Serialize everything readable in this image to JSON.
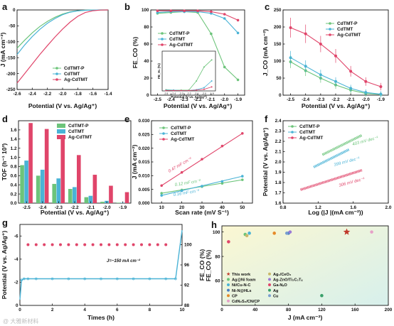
{
  "colors": {
    "cdtmt_p": "#6cc47a",
    "cdtmt": "#4ab3d6",
    "ag_cdtmt": "#e0456a"
  },
  "watermark": "@ 大雅新材料",
  "chart_data": [
    {
      "panel": "a",
      "type": "line",
      "xlabel": "Potential (V vs. Ag/Ag⁺)",
      "ylabel": "J (mA cm⁻²)",
      "xlim": [
        -2.6,
        -1.4
      ],
      "ylim": [
        -250,
        0
      ],
      "xticks": [
        "-2.6",
        "-2.4",
        "-2.2",
        "-2.0",
        "-1.8",
        "-1.6",
        "-1.4"
      ],
      "yticks": [
        "0",
        "-50",
        "-100",
        "-150",
        "-200",
        "-250"
      ],
      "legend": [
        "CdTMT-P",
        "CdTMT",
        "Ag-CdTMT"
      ],
      "series": [
        {
          "name": "CdTMT-P",
          "x": [
            -2.6,
            -2.5,
            -2.4,
            -2.3,
            -2.2,
            -2.1,
            -2.0,
            -1.9,
            -1.8,
            -1.7,
            -1.6,
            -1.5,
            -1.4
          ],
          "y": [
            -120,
            -95,
            -72,
            -52,
            -36,
            -23,
            -13,
            -6,
            -2.5,
            -1,
            -0.4,
            -0.1,
            0
          ]
        },
        {
          "name": "CdTMT",
          "x": [
            -2.6,
            -2.5,
            -2.4,
            -2.3,
            -2.2,
            -2.1,
            -2.0,
            -1.9,
            -1.8,
            -1.7,
            -1.6,
            -1.5,
            -1.4
          ],
          "y": [
            -140,
            -110,
            -84,
            -61,
            -42,
            -27,
            -15,
            -7,
            -3,
            -1.2,
            -0.4,
            -0.1,
            0
          ]
        },
        {
          "name": "Ag-CdTMT",
          "x": [
            -2.6,
            -2.5,
            -2.4,
            -2.3,
            -2.2,
            -2.1,
            -2.0,
            -1.9,
            -1.8,
            -1.7,
            -1.6,
            -1.5,
            -1.4
          ],
          "y": [
            -230,
            -200,
            -170,
            -140,
            -112,
            -85,
            -60,
            -38,
            -20,
            -8,
            -2.5,
            -0.5,
            0
          ]
        }
      ]
    },
    {
      "panel": "b",
      "type": "line",
      "xlabel": "Potential (V vs. Ag/Ag⁺)",
      "ylabel": "FE_CO (%)",
      "xlim": [
        -2.55,
        -1.85
      ],
      "ylim": [
        0,
        100
      ],
      "xticks": [
        "-2.5",
        "-2.4",
        "-2.3",
        "-2.2",
        "-2.1",
        "-2.0",
        "-1.9"
      ],
      "yticks": [
        "0",
        "20",
        "40",
        "60",
        "80",
        "100"
      ],
      "legend": [
        "CdTMT-P",
        "CdTMT",
        "Ag-CdTMT"
      ],
      "series": [
        {
          "name": "CdTMT-P",
          "x": [
            -2.5,
            -2.4,
            -2.3,
            -2.2,
            -2.1,
            -2.0,
            -1.9
          ],
          "y": [
            96,
            97,
            98,
            97,
            72,
            33,
            18
          ]
        },
        {
          "name": "CdTMT",
          "x": [
            -2.5,
            -2.4,
            -2.3,
            -2.2,
            -2.1,
            -2.0,
            -1.9
          ],
          "y": [
            97,
            98,
            98,
            98,
            96,
            90,
            73
          ]
        },
        {
          "name": "Ag-CdTMT",
          "x": [
            -2.5,
            -2.4,
            -2.3,
            -2.2,
            -2.1,
            -2.0,
            -1.9
          ],
          "y": [
            99,
            99,
            99,
            99,
            98,
            95,
            88
          ]
        }
      ],
      "inset": {
        "xlabel": "Potential (V vs. Ag/Ag⁺)",
        "ylabel": "FE_H₂ (%)",
        "xticks": [
          "-2.5",
          "-2.4",
          "-2.3",
          "-2.2",
          "-2.1",
          "-2.0",
          "-1.9"
        ],
        "series": [
          {
            "name": "CdTMT-P",
            "x": [
              -2.5,
              -2.4,
              -2.3,
              -2.2,
              -2.1,
              -2.0,
              -1.9
            ],
            "y": [
              3,
              2,
              2,
              2,
              25,
              60,
              78
            ]
          },
          {
            "name": "CdTMT",
            "x": [
              -2.5,
              -2.4,
              -2.3,
              -2.2,
              -2.1,
              -2.0,
              -1.9
            ],
            "y": [
              2,
              2,
              1,
              1,
              3,
              8,
              25
            ]
          },
          {
            "name": "Ag-CdTMT",
            "x": [
              -2.5,
              -2.4,
              -2.3,
              -2.2,
              -2.1,
              -2.0,
              -1.9
            ],
            "y": [
              1,
              1,
              1,
              1,
              2,
              4,
              10
            ]
          }
        ]
      }
    },
    {
      "panel": "c",
      "type": "line",
      "xlabel": "Potential (V vs. Ag/Ag⁺)",
      "ylabel": "J_CO (mA cm⁻²)",
      "xlim": [
        -2.55,
        -1.85
      ],
      "ylim": [
        0,
        250
      ],
      "xticks": [
        "-2.5",
        "-2.4",
        "-2.3",
        "-2.2",
        "-2.1",
        "-2.0",
        "-1.9"
      ],
      "yticks": [
        "0",
        "50",
        "100",
        "150",
        "200",
        "250"
      ],
      "legend": [
        "CdTMT-P",
        "CdTMT",
        "Ag-CdTMT"
      ],
      "series": [
        {
          "name": "CdTMT-P",
          "x": [
            -2.5,
            -2.4,
            -2.3,
            -2.2,
            -2.1,
            -2.0,
            -1.9
          ],
          "y": [
            98,
            72,
            50,
            30,
            15,
            5,
            2
          ]
        },
        {
          "name": "CdTMT",
          "x": [
            -2.5,
            -2.4,
            -2.3,
            -2.2,
            -2.1,
            -2.0,
            -1.9
          ],
          "y": [
            110,
            85,
            60,
            40,
            20,
            8,
            3
          ]
        },
        {
          "name": "Ag-CdTMT",
          "x": [
            -2.5,
            -2.4,
            -2.3,
            -2.2,
            -2.1,
            -2.0,
            -1.9
          ],
          "y": [
            198,
            180,
            150,
            115,
            70,
            40,
            25
          ]
        }
      ]
    },
    {
      "panel": "d",
      "type": "bar",
      "xlabel": "Potential (V vs. Ag/Ag⁺)",
      "ylabel": "TOF (h⁻¹ 10³)",
      "ylim": [
        0,
        1.8
      ],
      "yticks": [
        "0.0",
        "0.2",
        "0.4",
        "0.6",
        "0.8",
        "1.0",
        "1.2",
        "1.4",
        "1.6"
      ],
      "categories": [
        "-2.5",
        "-2.4",
        "-2.3",
        "-2.2",
        "-2.1",
        "-2.0",
        "-1.9"
      ],
      "legend": [
        "CdTMT-P",
        "CdTMT",
        "Ag-CdTMT"
      ],
      "series": [
        {
          "name": "CdTMT-P",
          "values": [
            0.83,
            0.6,
            0.42,
            0.31,
            0.13,
            0.03,
            0.01
          ]
        },
        {
          "name": "CdTMT",
          "values": [
            0.93,
            0.73,
            0.54,
            0.35,
            0.16,
            0.05,
            0.01
          ]
        },
        {
          "name": "Ag-CdTMT",
          "values": [
            1.75,
            1.62,
            1.4,
            1.05,
            0.62,
            0.38,
            0.24
          ]
        }
      ]
    },
    {
      "panel": "e",
      "type": "scatter",
      "xlabel": "Scan rate (mV S⁻¹)",
      "ylabel": "J (mA cm⁻²)",
      "xlim": [
        5,
        55
      ],
      "ylim": [
        0,
        0.03
      ],
      "xticks": [
        "10",
        "20",
        "30",
        "40",
        "50"
      ],
      "yticks": [
        "0.000",
        "0.005",
        "0.010",
        "0.015",
        "0.020",
        "0.025",
        "0.030"
      ],
      "legend": [
        "CdTMT-P",
        "CdTMT",
        "Ag-CdTMT"
      ],
      "annotations": [
        "0.47 mF cm⁻²",
        "0.12 mF cm⁻²",
        "0.16 mF cm⁻²"
      ],
      "series": [
        {
          "name": "CdTMT-P",
          "x": [
            10,
            20,
            30,
            40,
            50
          ],
          "y": [
            0.0036,
            0.0048,
            0.006,
            0.0072,
            0.0085
          ]
        },
        {
          "name": "CdTMT",
          "x": [
            10,
            20,
            30,
            40,
            50
          ],
          "y": [
            0.0028,
            0.0045,
            0.0062,
            0.0079,
            0.0098
          ]
        },
        {
          "name": "Ag-CdTMT",
          "x": [
            10,
            20,
            30,
            40,
            50
          ],
          "y": [
            0.0064,
            0.0112,
            0.016,
            0.0208,
            0.0254
          ]
        }
      ]
    },
    {
      "panel": "f",
      "type": "line",
      "xlabel": "Log (|J |(mA cm⁻²))",
      "ylabel": "Potential (V vs. Ag/Ag⁺)",
      "xlim": [
        0.8,
        2.0
      ],
      "ylim": [
        1.6,
        2.4
      ],
      "xticks": [
        "0.8",
        "1.2",
        "1.6",
        "2.0"
      ],
      "yticks": [
        "1.6",
        "1.7",
        "1.8",
        "1.9",
        "2.0",
        "2.1",
        "2.2",
        "2.3",
        "2.4"
      ],
      "legend": [
        "CdTMT-P",
        "CdTMT",
        "Ag-CdTMT"
      ],
      "annotations": [
        "403 mV dec⁻¹",
        "399 mV dec⁻¹",
        "306 mV dec⁻¹"
      ],
      "series": [
        {
          "name": "CdTMT-P",
          "x": [
            1.25,
            1.7
          ],
          "y": [
            2.07,
            2.26
          ]
        },
        {
          "name": "CdTMT",
          "x": [
            1.15,
            1.55
          ],
          "y": [
            1.95,
            2.12
          ]
        },
        {
          "name": "Ag-CdTMT",
          "x": [
            1.0,
            1.7
          ],
          "y": [
            1.73,
            1.92
          ]
        }
      ]
    },
    {
      "panel": "g",
      "type": "line",
      "xlabel": "Times (h)",
      "ylabel": "Potential (V vs. Ag/Ag⁺)",
      "y2label": "FE_CO (%)",
      "xlim": [
        0,
        10
      ],
      "ylim": [
        -7,
        0
      ],
      "y2lim": [
        88,
        104
      ],
      "xticks": [
        "0",
        "2",
        "4",
        "6",
        "8",
        "10"
      ],
      "yticks": [
        "0",
        "-2",
        "-4",
        "-6"
      ],
      "y2ticks": [
        "88",
        "92",
        "96",
        "100"
      ],
      "annotation": "J=~150 mA cm⁻²",
      "potential": {
        "x": [
          0,
          0.1,
          0.25,
          0.5,
          1,
          2,
          3,
          4,
          5,
          6,
          7,
          8,
          9,
          9.6,
          10
        ],
        "y": [
          -0.5,
          -2.2,
          -2.3,
          -2.3,
          -2.3,
          -2.3,
          -2.3,
          -2.3,
          -2.3,
          -2.3,
          -2.3,
          -2.3,
          -2.3,
          -2.3,
          -6.5
        ]
      },
      "fe_co": {
        "x": [
          0.5,
          1,
          1.5,
          2,
          2.5,
          3,
          3.5,
          4,
          4.5,
          5,
          5.5,
          6,
          6.5,
          7,
          7.5,
          8,
          8.5,
          9
        ],
        "y": [
          100,
          100,
          100,
          100,
          100,
          100,
          100,
          100,
          100,
          100,
          100,
          100,
          100,
          100,
          100,
          100,
          100,
          100
        ]
      }
    },
    {
      "panel": "h",
      "type": "scatter",
      "xlabel": "J (mA cm⁻²)",
      "ylabel": "FE_CO (%)",
      "xlim": [
        0,
        200
      ],
      "ylim": [
        40,
        105
      ],
      "xticks": [
        "0",
        "40",
        "80",
        "120",
        "160",
        "200"
      ],
      "yticks": [
        "60",
        "80",
        "100"
      ],
      "points": [
        {
          "name": "This work",
          "x": 150,
          "y": 100,
          "color": "#c0392b",
          "marker": "star"
        },
        {
          "name": "Ag@Ni foam",
          "x": 28,
          "y": 98,
          "color": "#6cc47a",
          "marker": "circle"
        },
        {
          "name": "Ni/Cu-N-C",
          "x": 33,
          "y": 99,
          "color": "#4ab3d6",
          "marker": "circle"
        },
        {
          "name": "Ni-N@HLs",
          "x": 80,
          "y": 99,
          "color": "#4a7fc4",
          "marker": "circle"
        },
        {
          "name": "CP",
          "x": 63,
          "y": 99,
          "color": "#e58a2a",
          "marker": "circle"
        },
        {
          "name": "CdN₂S₂/CN/CP",
          "x": 180,
          "y": 100,
          "color": "#e6a0c8",
          "marker": "circle"
        },
        {
          "name": "Ag₁/CeO₂",
          "x": 30,
          "y": 97,
          "color": "#c9b86a",
          "marker": "circle"
        },
        {
          "name": "Ag-ZnO/Ti₃C₂Tₓ",
          "x": 82,
          "y": 100,
          "color": "#9a7ad6",
          "marker": "circle"
        },
        {
          "name": "Ga-NₓO",
          "x": 8,
          "y": 92,
          "color": "#e0456a",
          "marker": "circle"
        },
        {
          "name": "Ag",
          "x": 120,
          "y": 48,
          "color": "#3aa06a",
          "marker": "circle"
        },
        {
          "name": "Cu",
          "x": 78,
          "y": 99,
          "color": "#7a9fd0",
          "marker": "circle"
        }
      ],
      "legend_order": [
        "This work",
        "Ag₁/CeO₂",
        "Ag@Ni foam",
        "Ag-ZnO/Ti₃C₂Tₓ",
        "Ni/Cu-N-C",
        "Ga-NₓO",
        "Ni-N@HLs",
        "Ag",
        "CP",
        "Cu",
        "CdN₂S₂/CN/CP"
      ]
    }
  ]
}
